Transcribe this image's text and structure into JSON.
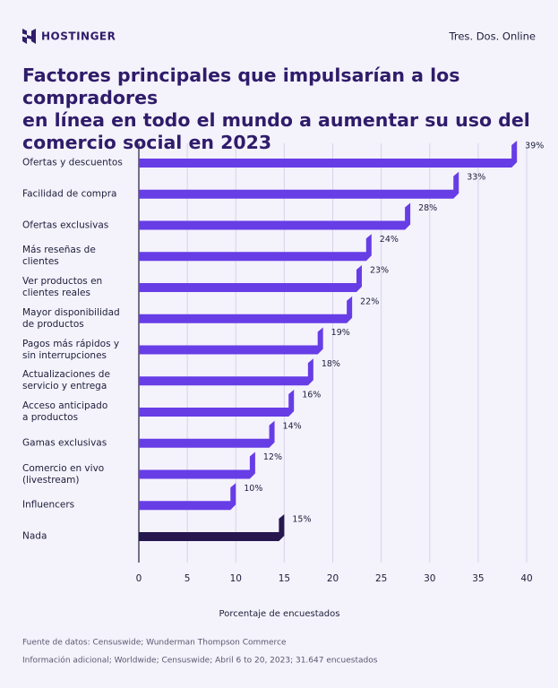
{
  "header": {
    "brand": "HOSTINGER",
    "site": "Tres. Dos. Online"
  },
  "chart_data": {
    "type": "bar",
    "orientation": "horizontal",
    "title": "Factores principales que impulsarían a los compradores\nen línea en todo el mundo a aumentar su uso del\ncomercio social en 2023",
    "categories": [
      "Ofertas y descuentos",
      "Facilidad de compra",
      "Ofertas exclusivas",
      "Más reseñas de clientes",
      "Ver productos en\nclientes reales",
      "Mayor disponibilidad\nde productos",
      "Pagos más rápidos y\nsin interrupciones",
      "Actualizaciones de\nservicio y entrega",
      "Acceso anticipado\na productos",
      "Gamas exclusivas",
      "Comercio en vivo\n(livestream)",
      "Influencers",
      "Nada"
    ],
    "values": [
      39,
      33,
      28,
      24,
      23,
      22,
      19,
      18,
      16,
      14,
      12,
      10,
      15
    ],
    "value_labels": [
      "39%",
      "33%",
      "28%",
      "24%",
      "23%",
      "22%",
      "19%",
      "18%",
      "16%",
      "14%",
      "12%",
      "10%",
      "15%"
    ],
    "colors": [
      "#673de6",
      "#673de6",
      "#673de6",
      "#673de6",
      "#673de6",
      "#673de6",
      "#673de6",
      "#673de6",
      "#673de6",
      "#673de6",
      "#673de6",
      "#673de6",
      "#26174f"
    ],
    "xlim": [
      0,
      40
    ],
    "xticks": [
      0,
      5,
      10,
      15,
      20,
      25,
      30,
      35,
      40
    ],
    "grid": true,
    "xlabel": "Porcentaje de encuestados"
  },
  "footer": {
    "source": "Fuente de datos: Censuswide; Wunderman Thompson Commerce",
    "info": "Información adicional; Worldwide; Censuswide; Abril 6 to 20, 2023; 31.647 encuestados"
  }
}
